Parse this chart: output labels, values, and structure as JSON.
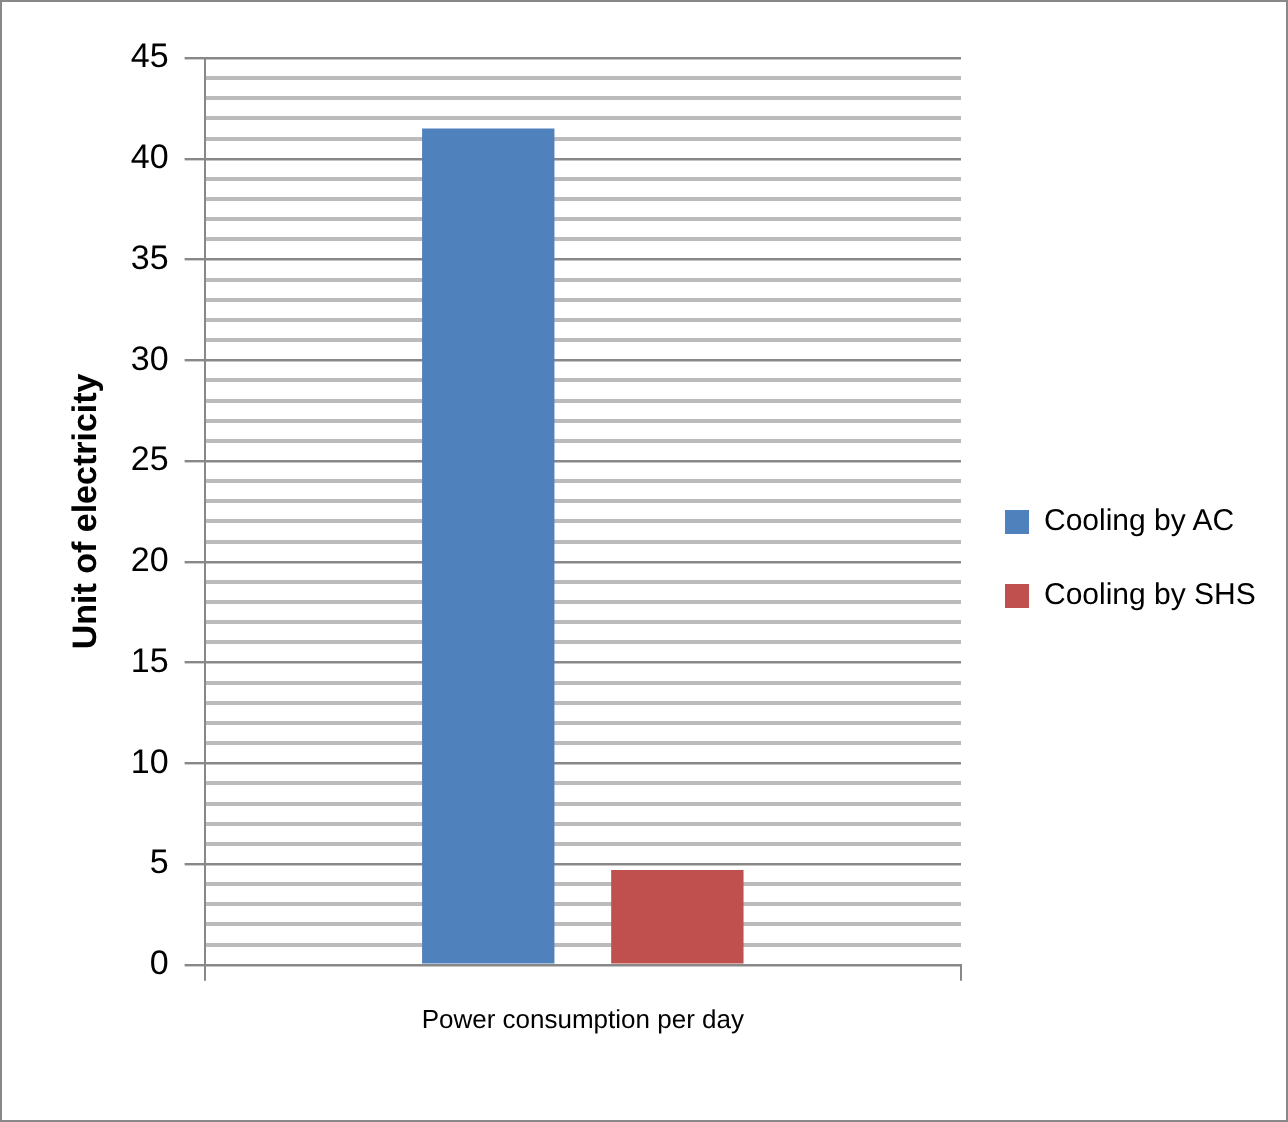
{
  "chart_data": {
    "type": "bar",
    "categories": [
      "Power consumption per day"
    ],
    "ylabel": "Unit of electricity",
    "series": [
      {
        "name": "Cooling by AC",
        "color": "#4f81bd",
        "values": [
          41.5
        ]
      },
      {
        "name": "Cooling by SHS",
        "color": "#c0504d",
        "values": [
          4.7
        ]
      }
    ],
    "ylim": [
      0,
      45
    ],
    "yticks": [
      0,
      {
        "value": 1,
        "label": null
      },
      {
        "value": 2,
        "label": null
      },
      {
        "value": 3,
        "label": null
      },
      {
        "value": 4,
        "label": null
      },
      5,
      {
        "value": 6,
        "label": null
      },
      {
        "value": 7,
        "label": null
      },
      {
        "value": 8,
        "label": null
      },
      {
        "value": 9,
        "label": null
      },
      10,
      {
        "value": 11,
        "label": null
      },
      {
        "value": 12,
        "label": null
      },
      {
        "value": 13,
        "label": null
      },
      {
        "value": 14,
        "label": null
      },
      15,
      {
        "value": 16,
        "label": null
      },
      {
        "value": 17,
        "label": null
      },
      {
        "value": 18,
        "label": null
      },
      {
        "value": 19,
        "label": null
      },
      20,
      {
        "value": 21,
        "label": null
      },
      {
        "value": 22,
        "label": null
      },
      {
        "value": 23,
        "label": null
      },
      {
        "value": 24,
        "label": null
      },
      25,
      {
        "value": 26,
        "label": null
      },
      {
        "value": 27,
        "label": null
      },
      {
        "value": 28,
        "label": null
      },
      {
        "value": 29,
        "label": null
      },
      30,
      {
        "value": 31,
        "label": null
      },
      {
        "value": 32,
        "label": null
      },
      {
        "value": 33,
        "label": null
      },
      {
        "value": 34,
        "label": null
      },
      35,
      {
        "value": 36,
        "label": null
      },
      {
        "value": 37,
        "label": null
      },
      {
        "value": 38,
        "label": null
      },
      {
        "value": 39,
        "label": null
      },
      40,
      {
        "value": 41,
        "label": null
      },
      {
        "value": 42,
        "label": null
      },
      {
        "value": 43,
        "label": null
      },
      {
        "value": 44,
        "label": null
      },
      45
    ],
    "grid": true,
    "legend": "right"
  }
}
